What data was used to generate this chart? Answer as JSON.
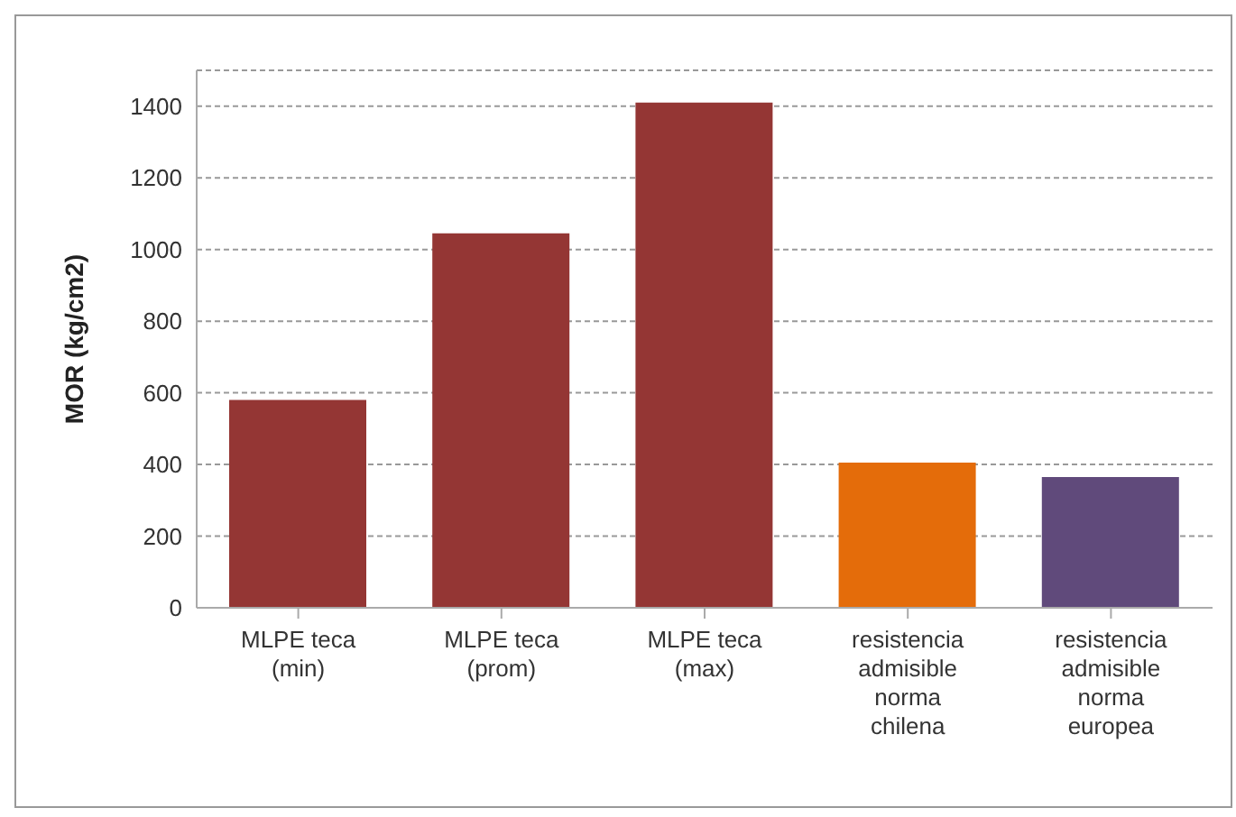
{
  "chart_data": {
    "type": "bar",
    "ylabel": "MOR (kg/cm2)",
    "categories": [
      "MLPE teca (min)",
      "MLPE teca (prom)",
      "MLPE teca (max)",
      "resistencia admisible norma chilena",
      "resistencia admisible norma europea"
    ],
    "values": [
      580,
      1045,
      1410,
      405,
      365
    ],
    "colors": [
      "#943634",
      "#943634",
      "#943634",
      "#e46c0a",
      "#604a7b"
    ],
    "ylim": [
      0,
      1500
    ],
    "yticks": [
      0,
      200,
      400,
      600,
      800,
      1000,
      1200,
      1400
    ],
    "grid": "y",
    "legend": false
  }
}
